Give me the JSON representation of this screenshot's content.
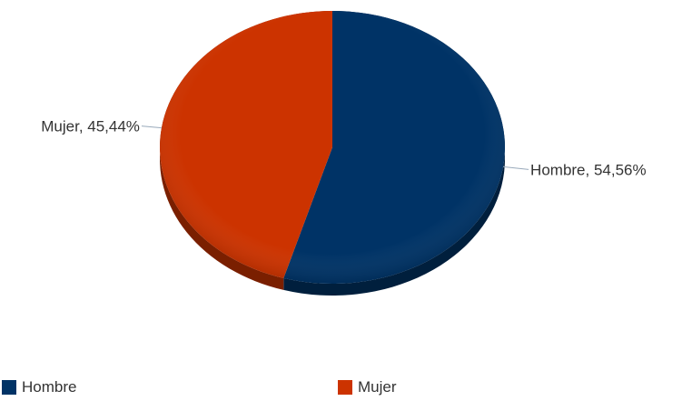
{
  "chart_data": {
    "type": "pie",
    "title": "",
    "legend_position": "bottom",
    "slices": [
      {
        "name": "Hombre",
        "value": 54.56,
        "label": "Hombre, 54,56%",
        "color": "#003366"
      },
      {
        "name": "Mujer",
        "value": 45.44,
        "label": "Mujer, 45,44%",
        "color": "#cc3300"
      }
    ]
  }
}
